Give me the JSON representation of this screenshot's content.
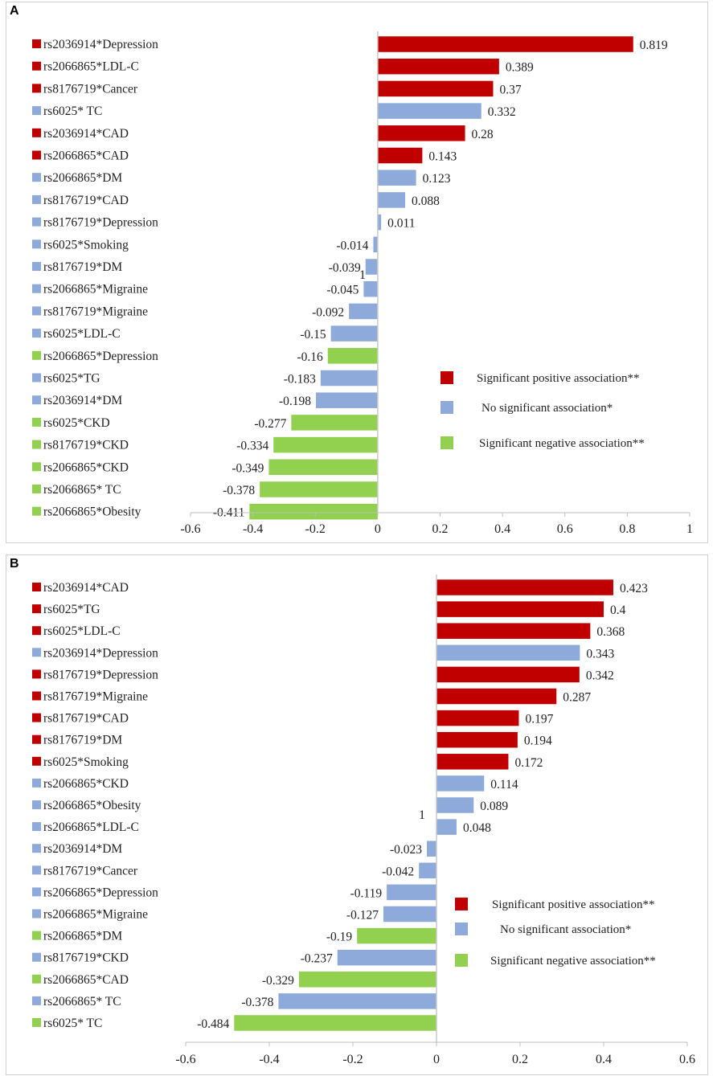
{
  "colors": {
    "sig_pos": "#c00000",
    "none": "#8eaadb",
    "sig_neg": "#92d050"
  },
  "chart_data": [
    {
      "type": "bar",
      "orientation": "horizontal",
      "panel_label": "A",
      "xlim": [
        -0.6,
        1
      ],
      "xticks": [
        "-0.6",
        "-0.4",
        "-0.2",
        "0",
        "0.2",
        "0.4",
        "0.6",
        "0.8",
        "1"
      ],
      "stray_text": "1",
      "legend": [
        {
          "label": "Significant positive association**",
          "class": "sig_pos"
        },
        {
          "label": "No significant association*",
          "class": "none"
        },
        {
          "label": "Significant negative association**",
          "class": "sig_neg"
        }
      ],
      "bars": [
        {
          "label": "rs2036914*Depression",
          "value": 0.819,
          "value_label": "0.819",
          "class": "sig_pos"
        },
        {
          "label": "rs2066865*LDL-C",
          "value": 0.389,
          "value_label": "0.389",
          "class": "sig_pos"
        },
        {
          "label": "rs8176719*Cancer",
          "value": 0.37,
          "value_label": "0.37",
          "class": "sig_pos"
        },
        {
          "label": "rs6025* TC",
          "value": 0.332,
          "value_label": "0.332",
          "class": "none"
        },
        {
          "label": "rs2036914*CAD",
          "value": 0.28,
          "value_label": "0.28",
          "class": "sig_pos"
        },
        {
          "label": "rs2066865*CAD",
          "value": 0.143,
          "value_label": "0.143",
          "class": "sig_pos"
        },
        {
          "label": "rs2066865*DM",
          "value": 0.123,
          "value_label": "0.123",
          "class": "none"
        },
        {
          "label": "rs8176719*CAD",
          "value": 0.088,
          "value_label": "0.088",
          "class": "none"
        },
        {
          "label": "rs8176719*Depression",
          "value": 0.011,
          "value_label": "0.011",
          "class": "none"
        },
        {
          "label": "rs6025*Smoking",
          "value": -0.014,
          "value_label": "-0.014",
          "class": "none"
        },
        {
          "label": "rs8176719*DM",
          "value": -0.039,
          "value_label": "-0.039",
          "class": "none"
        },
        {
          "label": "rs2066865*Migraine",
          "value": -0.045,
          "value_label": "-0.045",
          "class": "none"
        },
        {
          "label": "rs8176719*Migraine",
          "value": -0.092,
          "value_label": "-0.092",
          "class": "none"
        },
        {
          "label": "rs6025*LDL-C",
          "value": -0.15,
          "value_label": "-0.15",
          "class": "none"
        },
        {
          "label": "rs2066865*Depression",
          "value": -0.16,
          "value_label": "-0.16",
          "class": "sig_neg"
        },
        {
          "label": "rs6025*TG",
          "value": -0.183,
          "value_label": "-0.183",
          "class": "none"
        },
        {
          "label": "rs2036914*DM",
          "value": -0.198,
          "value_label": "-0.198",
          "class": "none"
        },
        {
          "label": "rs6025*CKD",
          "value": -0.277,
          "value_label": "-0.277",
          "class": "sig_neg"
        },
        {
          "label": "rs8176719*CKD",
          "value": -0.334,
          "value_label": "-0.334",
          "class": "sig_neg"
        },
        {
          "label": "rs2066865*CKD",
          "value": -0.349,
          "value_label": "-0.349",
          "class": "sig_neg"
        },
        {
          "label": "rs2066865* TC",
          "value": -0.378,
          "value_label": "-0.378",
          "class": "sig_neg"
        },
        {
          "label": "rs2066865*Obesity",
          "value": -0.411,
          "value_label": "-0.411",
          "class": "sig_neg"
        }
      ]
    },
    {
      "type": "bar",
      "orientation": "horizontal",
      "panel_label": "B",
      "xlim": [
        -0.6,
        0.6
      ],
      "xticks": [
        "-0.6",
        "-0.4",
        "-0.2",
        "0",
        "0.2",
        "0.4",
        "0.6"
      ],
      "stray_text": "1",
      "legend": [
        {
          "label": "Significant positive association**",
          "class": "sig_pos"
        },
        {
          "label": "No significant association*",
          "class": "none"
        },
        {
          "label": "Significant negative association**",
          "class": "sig_neg"
        }
      ],
      "bars": [
        {
          "label": "rs2036914*CAD",
          "value": 0.423,
          "value_label": "0.423",
          "class": "sig_pos"
        },
        {
          "label": "rs6025*TG",
          "value": 0.4,
          "value_label": "0.4",
          "class": "sig_pos"
        },
        {
          "label": "rs6025*LDL-C",
          "value": 0.368,
          "value_label": "0.368",
          "class": "sig_pos"
        },
        {
          "label": "rs2036914*Depression",
          "value": 0.343,
          "value_label": "0.343",
          "class": "none"
        },
        {
          "label": "rs8176719*Depression",
          "value": 0.342,
          "value_label": "0.342",
          "class": "sig_pos"
        },
        {
          "label": "rs8176719*Migraine",
          "value": 0.287,
          "value_label": "0.287",
          "class": "sig_pos"
        },
        {
          "label": "rs8176719*CAD",
          "value": 0.197,
          "value_label": "0.197",
          "class": "sig_pos"
        },
        {
          "label": "rs8176719*DM",
          "value": 0.194,
          "value_label": "0.194",
          "class": "sig_pos"
        },
        {
          "label": "rs6025*Smoking",
          "value": 0.172,
          "value_label": "0.172",
          "class": "sig_pos"
        },
        {
          "label": "rs2066865*CKD",
          "value": 0.114,
          "value_label": "0.114",
          "class": "none"
        },
        {
          "label": "rs2066865*Obesity",
          "value": 0.089,
          "value_label": "0.089",
          "class": "none"
        },
        {
          "label": "rs2066865*LDL-C",
          "value": 0.048,
          "value_label": "0.048",
          "class": "none"
        },
        {
          "label": "rs2036914*DM",
          "value": -0.023,
          "value_label": "-0.023",
          "class": "none"
        },
        {
          "label": "rs8176719*Cancer",
          "value": -0.042,
          "value_label": "-0.042",
          "class": "none"
        },
        {
          "label": "rs2066865*Depression",
          "value": -0.119,
          "value_label": "-0.119",
          "class": "none"
        },
        {
          "label": "rs2066865*Migraine",
          "value": -0.127,
          "value_label": "-0.127",
          "class": "none"
        },
        {
          "label": "rs2066865*DM",
          "value": -0.19,
          "value_label": "-0.19",
          "class": "sig_neg"
        },
        {
          "label": "rs8176719*CKD",
          "value": -0.237,
          "value_label": "-0.237",
          "class": "none"
        },
        {
          "label": "rs2066865*CAD",
          "value": -0.329,
          "value_label": "-0.329",
          "class": "sig_neg"
        },
        {
          "label": "rs2066865* TC",
          "value": -0.378,
          "value_label": "-0.378",
          "class": "none"
        },
        {
          "label": "rs6025* TC",
          "value": -0.484,
          "value_label": "-0.484",
          "class": "sig_neg"
        }
      ]
    }
  ]
}
